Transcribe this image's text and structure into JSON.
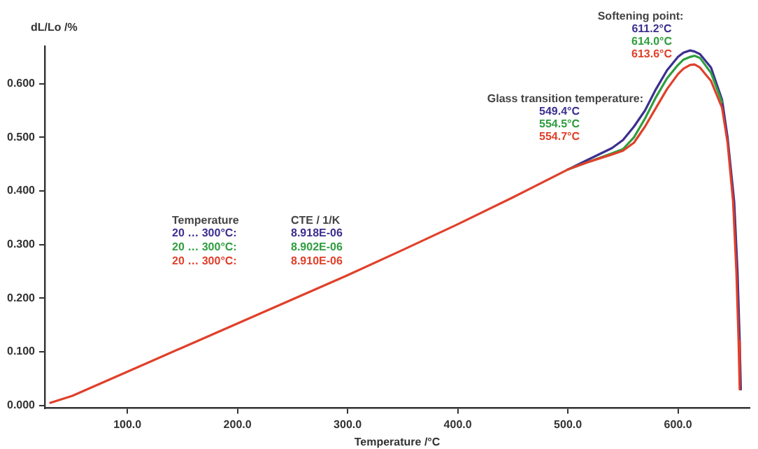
{
  "chart_data": {
    "type": "line",
    "xlabel": "Temperature /°C",
    "ylabel": "dL/Lo /%",
    "xlim": [
      25,
      665
    ],
    "ylim": [
      -0.005,
      0.67
    ],
    "xticks": [
      {
        "value": 100,
        "label": "100.0"
      },
      {
        "value": 200,
        "label": "200.0"
      },
      {
        "value": 300,
        "label": "300.0"
      },
      {
        "value": 400,
        "label": "400.0"
      },
      {
        "value": 500,
        "label": "500.0"
      },
      {
        "value": 600,
        "label": "600.0"
      }
    ],
    "yticks": [
      {
        "value": 0,
        "label": "0.000"
      },
      {
        "value": 0.1,
        "label": "0.100"
      },
      {
        "value": 0.2,
        "label": "0.200"
      },
      {
        "value": 0.3,
        "label": "0.300"
      },
      {
        "value": 0.4,
        "label": "0.400"
      },
      {
        "value": 0.5,
        "label": "0.500"
      },
      {
        "value": 0.6,
        "label": "0.600"
      }
    ],
    "grid": false,
    "legend": false,
    "marker": "none",
    "line_style": "solid",
    "series": [
      {
        "color": "#3b2f8f",
        "x": [
          500,
          520,
          540,
          550,
          560,
          570,
          580,
          590,
          600,
          605,
          611,
          615,
          620,
          630,
          640,
          645,
          651,
          654,
          656,
          657
        ],
        "values": [
          0.44,
          0.46,
          0.48,
          0.495,
          0.52,
          0.55,
          0.59,
          0.625,
          0.65,
          0.658,
          0.662,
          0.66,
          0.655,
          0.63,
          0.57,
          0.5,
          0.38,
          0.25,
          0.12,
          0.03
        ]
      },
      {
        "color": "#2e9e3e",
        "x": [
          500,
          520,
          540,
          550,
          560,
          570,
          580,
          590,
          600,
          605,
          611,
          615,
          620,
          630,
          640
        ],
        "values": [
          0.44,
          0.455,
          0.47,
          0.478,
          0.5,
          0.535,
          0.575,
          0.61,
          0.635,
          0.645,
          0.65,
          0.652,
          0.648,
          0.62,
          0.565
        ]
      },
      {
        "color": "#e0402a",
        "x": [
          30,
          50,
          100,
          150,
          200,
          250,
          300,
          350,
          400,
          450,
          500,
          520,
          540,
          550,
          560,
          570,
          580,
          590,
          600,
          605,
          611,
          615,
          620,
          630,
          640,
          645,
          650,
          653,
          655,
          656
        ],
        "values": [
          0.005,
          0.018,
          0.063,
          0.108,
          0.153,
          0.198,
          0.243,
          0.29,
          0.338,
          0.388,
          0.44,
          0.455,
          0.468,
          0.475,
          0.49,
          0.52,
          0.555,
          0.59,
          0.618,
          0.628,
          0.635,
          0.636,
          0.63,
          0.605,
          0.555,
          0.49,
          0.38,
          0.25,
          0.12,
          0.03
        ]
      }
    ],
    "annotations": [
      "Temperature",
      "CTE / 1/K",
      "20 … 300°C:",
      "8.918E-06",
      "20 … 300°C:",
      "8.902E-06",
      "20 … 300°C:",
      "8.910E-06",
      "Glass transition temperature:",
      "549.4°C",
      "554.5°C",
      "554.7°C",
      "Softening point:",
      "611.2°C",
      "614.0°C",
      "613.6°C"
    ]
  }
}
